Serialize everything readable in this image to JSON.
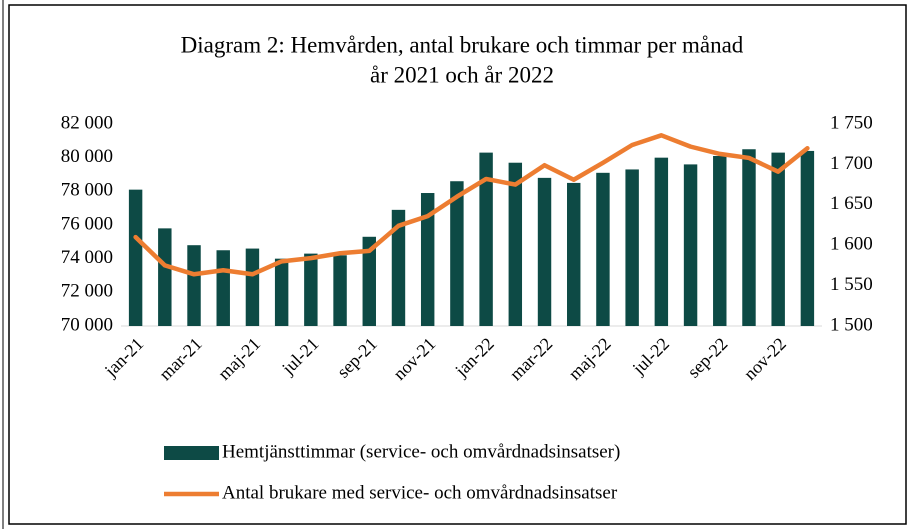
{
  "chart_data": {
    "type": "bar_line",
    "title": [
      "Diagram 2: Hemvården, antal brukare och timmar per månad",
      "år 2021 och år 2022"
    ],
    "categories": [
      "jan-21",
      null,
      "mar-21",
      null,
      "maj-21",
      null,
      "jul-21",
      null,
      "sep-21",
      null,
      "nov-21",
      null,
      "jan-22",
      null,
      "mar-22",
      null,
      "maj-22",
      null,
      "jul-22",
      null,
      "sep-22",
      null,
      "nov-22",
      null
    ],
    "series": [
      {
        "name": "Hemtjänsttimmar (service- och omvårdnadsinsatser)",
        "type": "bar",
        "color": "#0d4a45",
        "values": [
          78100,
          75800,
          74800,
          74500,
          74600,
          74000,
          74300,
          74200,
          75300,
          76900,
          77900,
          78600,
          80300,
          79700,
          78800,
          78500,
          79100,
          79300,
          80000,
          79600,
          80100,
          80500,
          80300,
          80400
        ]
      },
      {
        "name": "Antal brukare med service- och omvårdnadsinsatser",
        "type": "line",
        "axis": "y2",
        "color": "#ed7d31",
        "values": [
          1610,
          1575,
          1564,
          1569,
          1564,
          1580,
          1584,
          1590,
          1593,
          1624,
          1636,
          1660,
          1682,
          1675,
          1699,
          1681,
          1702,
          1724,
          1736,
          1722,
          1713,
          1708,
          1691,
          1720
        ]
      }
    ],
    "ylim": [
      70000,
      82000
    ],
    "yticks": [
      {
        "value": 70000,
        "label": "70 000"
      },
      {
        "value": 72000,
        "label": "72 000"
      },
      {
        "value": 74000,
        "label": "74 000"
      },
      {
        "value": 76000,
        "label": "76 000"
      },
      {
        "value": 78000,
        "label": "78 000"
      },
      {
        "value": 80000,
        "label": "80 000"
      },
      {
        "value": 82000,
        "label": "82 000"
      }
    ],
    "y2lim": [
      1500,
      1750
    ],
    "y2ticks": [
      {
        "value": 1500,
        "label": "1 500"
      },
      {
        "value": 1550,
        "label": "1 550"
      },
      {
        "value": 1600,
        "label": "1 600"
      },
      {
        "value": 1650,
        "label": "1 650"
      },
      {
        "value": 1700,
        "label": "1 700"
      },
      {
        "value": 1750,
        "label": "1 750"
      }
    ],
    "legend": "bottom"
  }
}
